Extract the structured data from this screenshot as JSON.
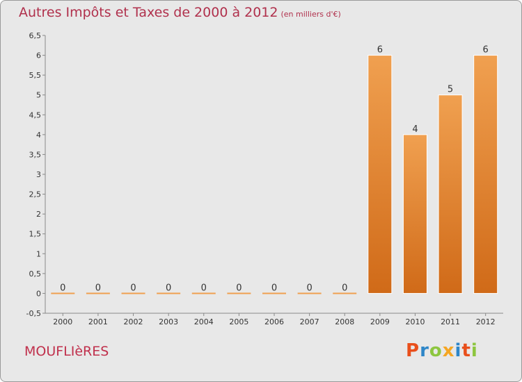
{
  "title": "Autres Impôts et Taxes de 2000 à 2012",
  "unit": "(en milliers d'€)",
  "commune": "MOUFLIèRES",
  "brand": [
    "P",
    "r",
    "o",
    "x",
    "i",
    "t",
    "i"
  ],
  "brand_colors": [
    "#e94f1b",
    "#2e86c8",
    "#8dc63f",
    "#f5a623",
    "#2e86c8",
    "#e94f1b",
    "#8dc63f"
  ],
  "chart_data": {
    "type": "bar",
    "categories": [
      "2000",
      "2001",
      "2002",
      "2003",
      "2004",
      "2005",
      "2006",
      "2007",
      "2008",
      "2009",
      "2010",
      "2011",
      "2012"
    ],
    "values": [
      0,
      0,
      0,
      0,
      0,
      0,
      0,
      0,
      0,
      6,
      4,
      5,
      6
    ],
    "ylim": [
      -0.5,
      6.5
    ],
    "yticks": [
      "-0,5",
      "0",
      "0,5",
      "1",
      "1,5",
      "2",
      "2,5",
      "3",
      "3,5",
      "4",
      "4,5",
      "5",
      "5,5",
      "6",
      "6,5"
    ],
    "ytick_values": [
      -0.5,
      0,
      0.5,
      1,
      1.5,
      2,
      2.5,
      3,
      3.5,
      4,
      4.5,
      5,
      5.5,
      6,
      6.5
    ],
    "bar_color": "#f0a050",
    "bar_color_dark": "#d06a18",
    "grid": false,
    "legend": "none"
  }
}
